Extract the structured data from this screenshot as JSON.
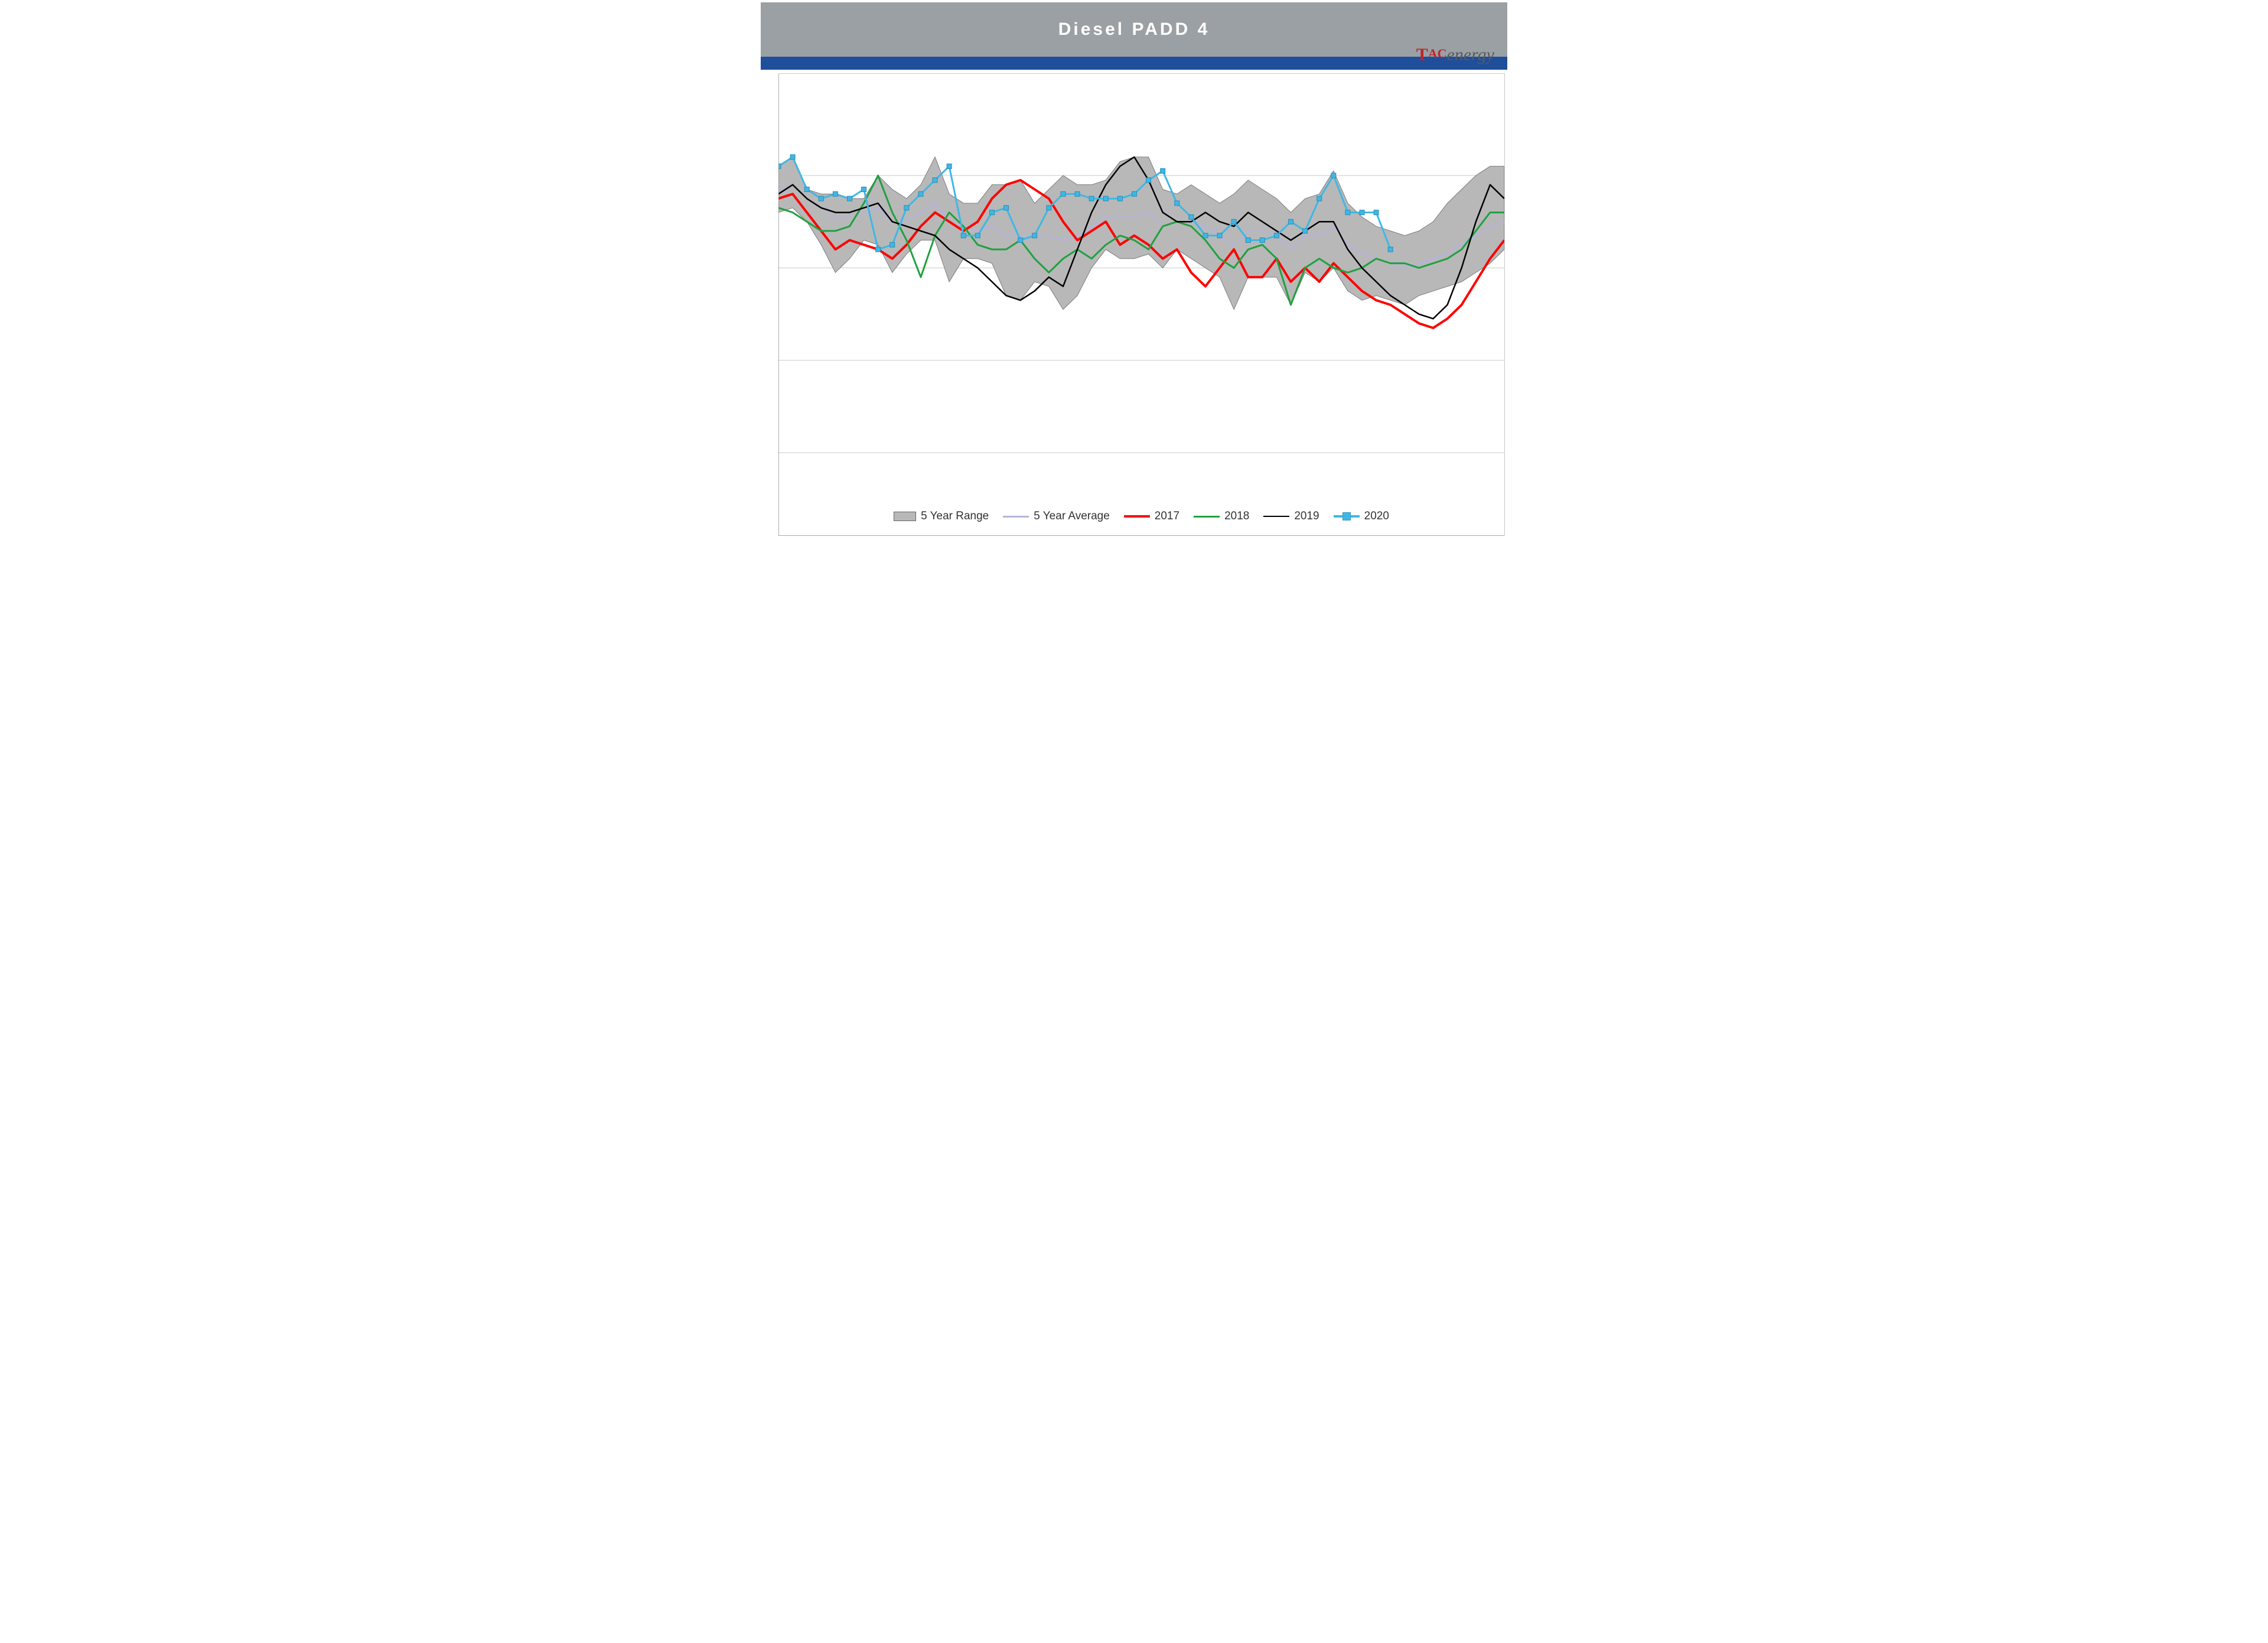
{
  "header": {
    "title": "Diesel  PADD  4",
    "logo_text_t": "T",
    "logo_text_ac": "AC",
    "logo_text_rest": "energy",
    "title_bg": "#9aa0a4",
    "title_color": "#ffffff",
    "stripe_color": "#1f4e9b"
  },
  "chart": {
    "type": "line-band",
    "x_count": 52,
    "ylim": [
      0,
      100
    ],
    "gridlines_y": [
      18,
      38,
      58,
      78
    ],
    "background_color": "#ffffff",
    "grid_color": "#c9c9c9",
    "band": {
      "label": "5 Year Range",
      "fill": "#b8b8b8",
      "stroke": "#7c7c7c",
      "upper": [
        80,
        82,
        75,
        74,
        74,
        73,
        73,
        78,
        75,
        73,
        76,
        82,
        74,
        72,
        72,
        76,
        76,
        77,
        72,
        75,
        78,
        76,
        76,
        77,
        81,
        82,
        82,
        75,
        74,
        76,
        74,
        72,
        74,
        77,
        75,
        73,
        70,
        73,
        74,
        79,
        72,
        69,
        67,
        66,
        65,
        66,
        68,
        72,
        75,
        78,
        80,
        80
      ],
      "lower": [
        70,
        71,
        68,
        63,
        57,
        60,
        64,
        63,
        57,
        61,
        64,
        64,
        55,
        60,
        60,
        59,
        52,
        51,
        55,
        54,
        49,
        52,
        58,
        62,
        60,
        60,
        61,
        58,
        62,
        60,
        58,
        56,
        49,
        56,
        56,
        56,
        50,
        57,
        55,
        58,
        53,
        51,
        52,
        51,
        50,
        52,
        53,
        54,
        55,
        57,
        59,
        62
      ]
    },
    "series": [
      {
        "key": "avg",
        "label": "5 Year Average",
        "color": "#b5b4d6",
        "width": 3,
        "marker": null,
        "values": [
          75,
          76,
          73,
          71,
          69,
          69,
          70,
          71,
          68,
          68,
          70,
          72,
          68,
          67,
          66,
          67,
          65,
          65,
          65,
          65,
          64,
          65,
          67,
          69,
          69,
          69,
          70,
          67,
          68,
          68,
          67,
          65,
          63,
          66,
          66,
          65,
          62,
          65,
          65,
          67,
          63,
          61,
          60,
          59,
          58,
          59,
          60,
          61,
          63,
          65,
          67,
          68
        ]
      },
      {
        "key": "y2017",
        "label": "2017",
        "color": "#ff0000",
        "width": 4,
        "marker": null,
        "values": [
          73,
          74,
          70,
          66,
          62,
          64,
          63,
          62,
          60,
          63,
          67,
          70,
          68,
          66,
          68,
          73,
          76,
          77,
          75,
          73,
          68,
          64,
          66,
          68,
          63,
          65,
          63,
          60,
          62,
          57,
          54,
          58,
          62,
          56,
          56,
          60,
          55,
          58,
          55,
          59,
          56,
          53,
          51,
          50,
          48,
          46,
          45,
          47,
          50,
          55,
          60,
          64
        ]
      },
      {
        "key": "y2018",
        "label": "2018",
        "color": "#20a040",
        "width": 3,
        "marker": null,
        "values": [
          71,
          70,
          68,
          66,
          66,
          67,
          72,
          78,
          70,
          64,
          56,
          65,
          70,
          67,
          63,
          62,
          62,
          64,
          60,
          57,
          60,
          62,
          60,
          63,
          65,
          64,
          62,
          67,
          68,
          67,
          64,
          60,
          58,
          62,
          63,
          60,
          50,
          58,
          60,
          58,
          57,
          58,
          60,
          59,
          59,
          58,
          59,
          60,
          62,
          66,
          70,
          70
        ]
      },
      {
        "key": "y2019",
        "label": "2019",
        "color": "#000000",
        "width": 2.5,
        "marker": null,
        "values": [
          74,
          76,
          73,
          71,
          70,
          70,
          71,
          72,
          68,
          67,
          66,
          65,
          62,
          60,
          58,
          55,
          52,
          51,
          53,
          56,
          54,
          62,
          70,
          76,
          80,
          82,
          77,
          70,
          68,
          68,
          70,
          68,
          67,
          70,
          68,
          66,
          64,
          66,
          68,
          68,
          62,
          58,
          55,
          52,
          50,
          48,
          47,
          50,
          58,
          68,
          76,
          73
        ]
      },
      {
        "key": "y2020",
        "label": "2020",
        "color": "#3fb7e4",
        "width": 3,
        "marker": "square",
        "marker_size": 8,
        "values": [
          80,
          82,
          75,
          73,
          74,
          73,
          75,
          62,
          63,
          71,
          74,
          77,
          80,
          65,
          65,
          70,
          71,
          64,
          65,
          71,
          74,
          74,
          73,
          73,
          73,
          74,
          77,
          79,
          72,
          69,
          65,
          65,
          68,
          64,
          64,
          65,
          68,
          66,
          73,
          78,
          70,
          70,
          70,
          62
        ]
      }
    ],
    "legend_order": [
      "band",
      "avg",
      "y2017",
      "y2018",
      "y2019",
      "y2020"
    ],
    "line_width_default": 3
  }
}
